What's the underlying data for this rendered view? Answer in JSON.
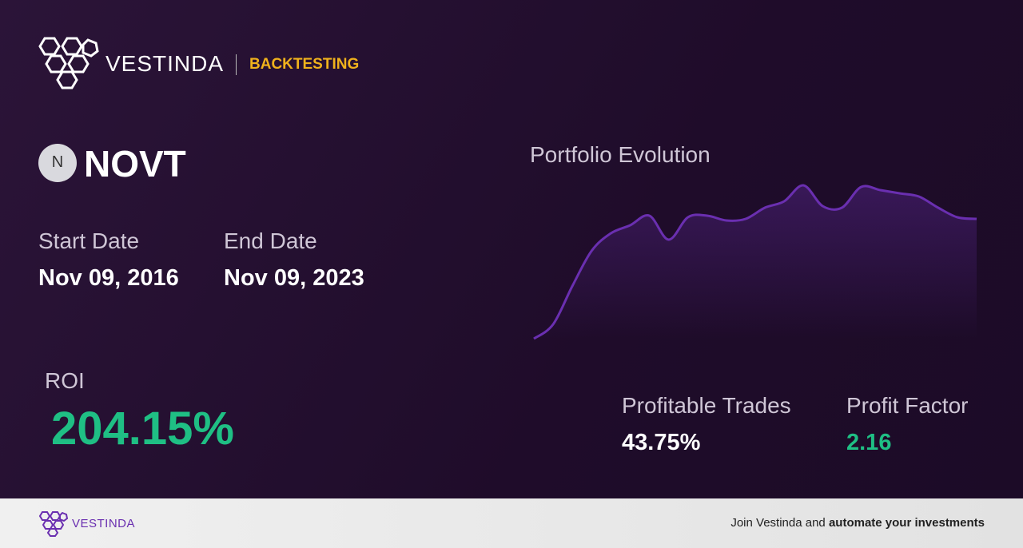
{
  "header": {
    "brand": "VESTINDA",
    "section": "BACKTESTING"
  },
  "asset": {
    "icon_letter": "N",
    "ticker": "NOVT"
  },
  "dates": {
    "start_label": "Start Date",
    "start": "Nov 09, 2016",
    "end_label": "End Date",
    "end": "Nov 09, 2023"
  },
  "roi": {
    "label": "ROI",
    "value": "204.15%"
  },
  "portfolio_chart": {
    "type": "line",
    "title": "Portfolio Evolution",
    "color": "#6a2fb0",
    "values": [
      0,
      9,
      33,
      55,
      66,
      71,
      77,
      62,
      76,
      77,
      74,
      75,
      82,
      86,
      96,
      83,
      82,
      95,
      93,
      91,
      89,
      82,
      76,
      75
    ]
  },
  "stats": {
    "profitable_trades_label": "Profitable Trades",
    "profitable_trades": "43.75%",
    "profit_factor_label": "Profit Factor",
    "profit_factor": "2.16"
  },
  "footer": {
    "brand": "VESTINDA",
    "cta": "Join Vestinda and",
    "cta_bold": "automate your investments"
  }
}
